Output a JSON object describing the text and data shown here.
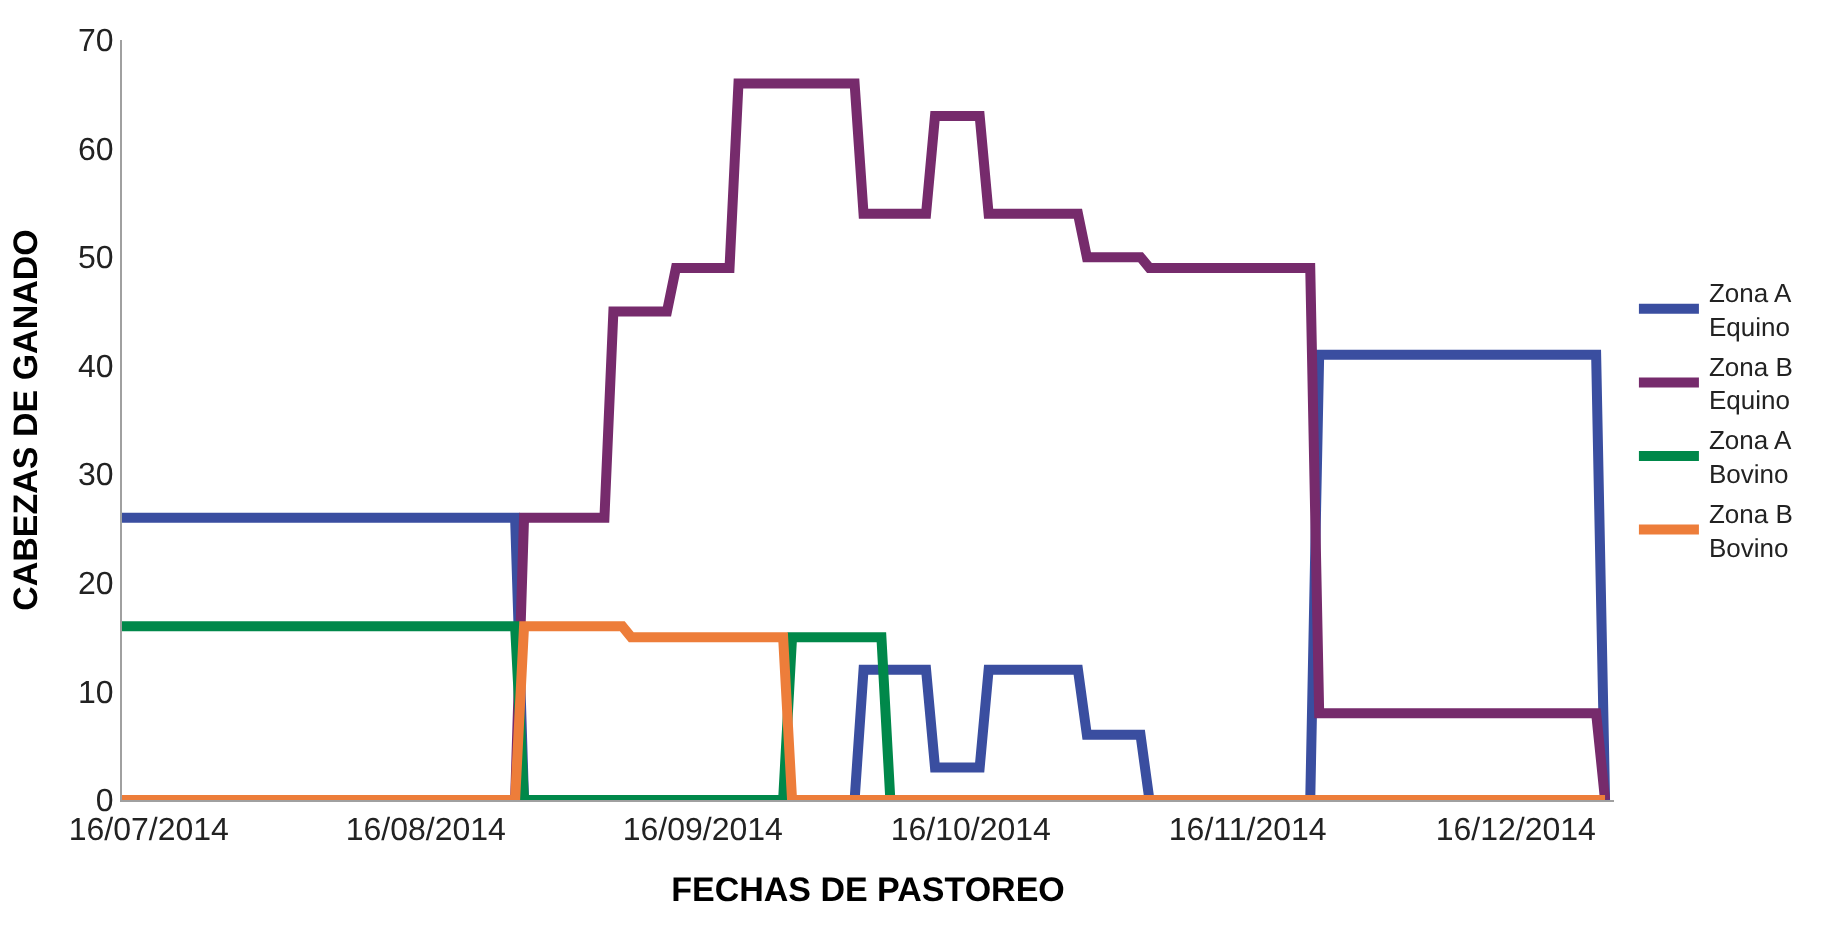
{
  "chart_data": {
    "type": "line",
    "xlabel": "FECHAS DE PASTOREO",
    "ylabel": "CABEZAS DE GANADO",
    "xlim": [
      "2014-07-13",
      "2014-12-27"
    ],
    "xticks": [
      {
        "value": "2014-07-16",
        "label": "16/07/2014"
      },
      {
        "value": "2014-08-16",
        "label": "16/08/2014"
      },
      {
        "value": "2014-09-16",
        "label": "16/09/2014"
      },
      {
        "value": "2014-10-16",
        "label": "16/10/2014"
      },
      {
        "value": "2014-11-16",
        "label": "16/11/2014"
      },
      {
        "value": "2014-12-16",
        "label": "16/12/2014"
      }
    ],
    "ylim": [
      0,
      70
    ],
    "yticks": [
      0,
      10,
      20,
      30,
      40,
      50,
      60,
      70
    ],
    "legend": "right",
    "marker": "none",
    "line_style": "solid",
    "series": [
      {
        "name": "Zona A\nEquino",
        "color": "#3a4ea0",
        "x": [
          "2014-07-13",
          "2014-08-26",
          "2014-08-27",
          "2014-10-03",
          "2014-10-04",
          "2014-10-11",
          "2014-10-12",
          "2014-10-17",
          "2014-10-18",
          "2014-10-28",
          "2014-10-29",
          "2014-11-04",
          "2014-11-05",
          "2014-11-23",
          "2014-11-24",
          "2014-12-25",
          "2014-12-26"
        ],
        "values": [
          26,
          26,
          0,
          0,
          12,
          12,
          3,
          3,
          12,
          12,
          6,
          6,
          0,
          0,
          41,
          41,
          0
        ]
      },
      {
        "name": "Zona B\nEquino",
        "color": "#762b6c",
        "x": [
          "2014-07-13",
          "2014-08-26",
          "2014-08-27",
          "2014-09-05",
          "2014-09-06",
          "2014-09-12",
          "2014-09-13",
          "2014-09-19",
          "2014-09-20",
          "2014-10-03",
          "2014-10-04",
          "2014-10-11",
          "2014-10-12",
          "2014-10-17",
          "2014-10-18",
          "2014-10-28",
          "2014-10-29",
          "2014-11-04",
          "2014-11-05",
          "2014-11-23",
          "2014-11-24",
          "2014-12-25",
          "2014-12-26"
        ],
        "values": [
          0,
          0,
          26,
          26,
          45,
          45,
          49,
          49,
          66,
          66,
          54,
          54,
          63,
          63,
          54,
          54,
          50,
          50,
          49,
          49,
          8,
          8,
          0
        ]
      },
      {
        "name": "Zona A\nBovino",
        "color": "#00884a",
        "x": [
          "2014-07-13",
          "2014-08-26",
          "2014-08-27",
          "2014-09-25",
          "2014-09-26",
          "2014-10-06",
          "2014-10-07",
          "2014-12-26"
        ],
        "values": [
          16,
          16,
          0,
          0,
          15,
          15,
          0,
          0
        ]
      },
      {
        "name": "Zona B\nBovino",
        "color": "#ed7d3a",
        "x": [
          "2014-07-13",
          "2014-08-26",
          "2014-08-27",
          "2014-09-07",
          "2014-09-08",
          "2014-09-25",
          "2014-09-26",
          "2014-12-26"
        ],
        "values": [
          0,
          0,
          16,
          16,
          15,
          15,
          0,
          0
        ]
      }
    ]
  }
}
